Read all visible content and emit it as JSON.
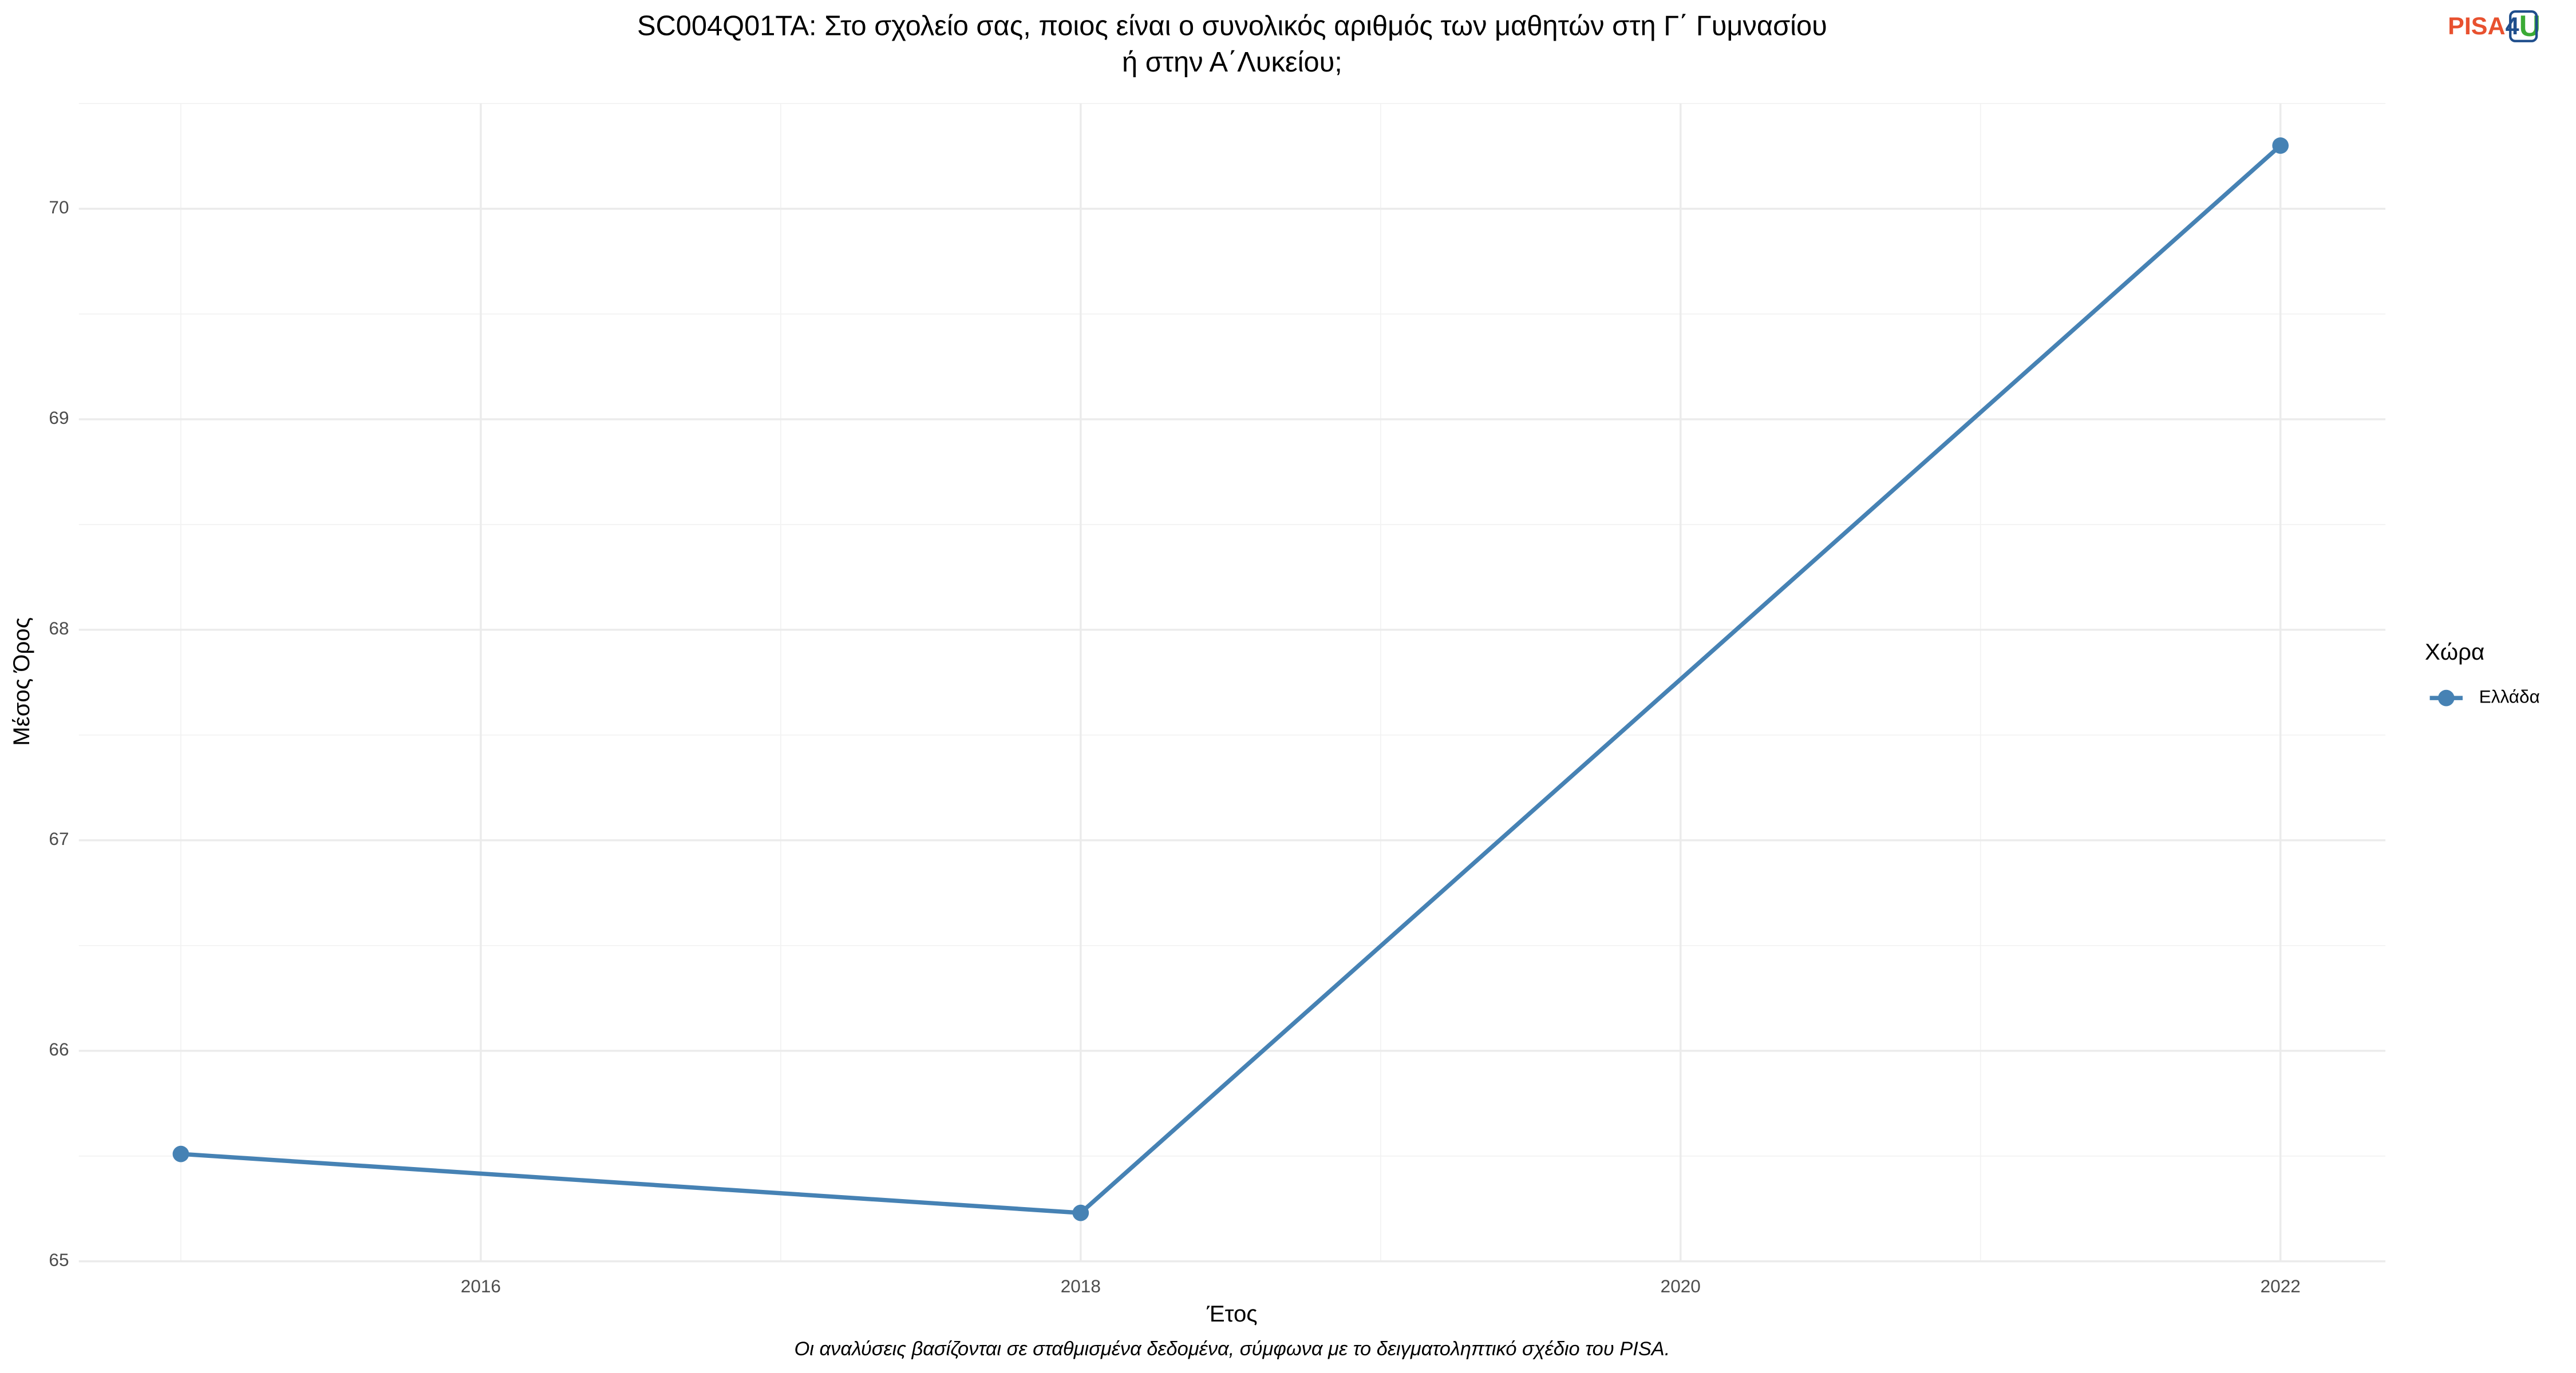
{
  "chart_data": {
    "type": "line",
    "title": [
      "SC004Q01TA: Στο σχολείο σας, ποιος είναι ο συνολικός αριθμός των μαθητών στη Γ΄ Γυμνασίου",
      "ή στην Α΄Λυκείου;"
    ],
    "logo": [
      "PISA",
      "4",
      "U"
    ],
    "x_label": "Έτος",
    "y_label": "Μέσος Όρος",
    "caption": "Οι αναλύσεις βασίζονται σε σταθμισμένα δεδομένα, σύμφωνα με το δειγματοληπτικό σχέδιο του PISA.",
    "legend_title": "Χώρα",
    "legend_position": "right",
    "x": [
      2015,
      2018,
      2022
    ],
    "series": [
      {
        "name": "Ελλάδα",
        "color": "#4682b4",
        "values": [
          65.51,
          65.23,
          70.3
        ]
      }
    ],
    "xlim": [
      2014.66,
      2022.35
    ],
    "xticks": [
      2016,
      2018,
      2020,
      2022
    ],
    "ylim": [
      65,
      70.5
    ],
    "yticks": [
      65,
      66,
      67,
      68,
      69,
      70
    ],
    "grid": true
  }
}
